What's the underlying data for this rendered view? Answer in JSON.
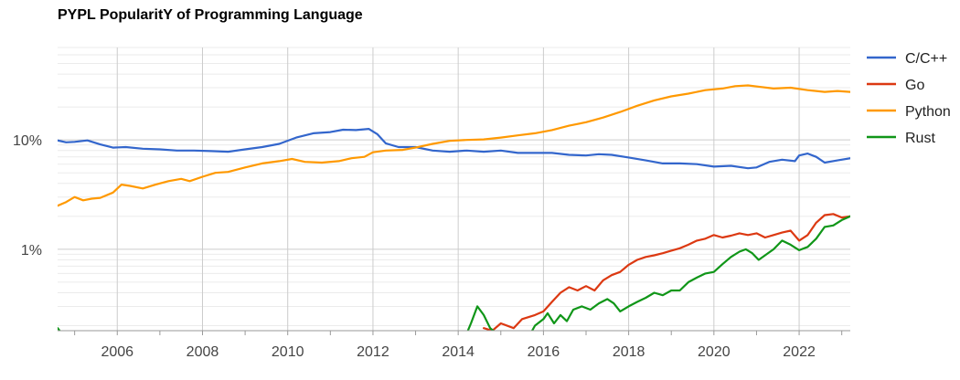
{
  "chart_data": {
    "type": "line",
    "title": "PYPL PopularitY of Programming Language",
    "xlabel": "",
    "ylabel": "",
    "y_scale": "log",
    "ylim": [
      0.18,
      70
    ],
    "xlim": [
      2004.6,
      2023.2
    ],
    "x_ticks": [
      2006,
      2008,
      2010,
      2012,
      2014,
      2016,
      2018,
      2020,
      2022
    ],
    "x_tick_labels": [
      "2006",
      "2008",
      "2010",
      "2012",
      "2014",
      "2016",
      "2018",
      "2020",
      "2022"
    ],
    "y_ticks": [
      1,
      10
    ],
    "y_tick_labels": [
      "1%",
      "10%"
    ],
    "grid": true,
    "legend_position": "right",
    "series": [
      {
        "name": "C/C++",
        "color": "#3366cc",
        "points": [
          [
            2004.6,
            9.9
          ],
          [
            2004.8,
            9.5
          ],
          [
            2005.0,
            9.6
          ],
          [
            2005.3,
            9.9
          ],
          [
            2005.6,
            9.1
          ],
          [
            2005.9,
            8.5
          ],
          [
            2006.2,
            8.6
          ],
          [
            2006.6,
            8.3
          ],
          [
            2007.0,
            8.2
          ],
          [
            2007.4,
            8.0
          ],
          [
            2007.8,
            8.0
          ],
          [
            2008.2,
            7.9
          ],
          [
            2008.6,
            7.8
          ],
          [
            2009.0,
            8.2
          ],
          [
            2009.4,
            8.6
          ],
          [
            2009.8,
            9.2
          ],
          [
            2010.2,
            10.5
          ],
          [
            2010.6,
            11.5
          ],
          [
            2011.0,
            11.8
          ],
          [
            2011.3,
            12.4
          ],
          [
            2011.6,
            12.3
          ],
          [
            2011.9,
            12.6
          ],
          [
            2012.1,
            11.3
          ],
          [
            2012.3,
            9.3
          ],
          [
            2012.6,
            8.6
          ],
          [
            2013.0,
            8.6
          ],
          [
            2013.4,
            8.0
          ],
          [
            2013.8,
            7.8
          ],
          [
            2014.2,
            8.0
          ],
          [
            2014.6,
            7.8
          ],
          [
            2015.0,
            8.0
          ],
          [
            2015.4,
            7.6
          ],
          [
            2015.8,
            7.6
          ],
          [
            2016.2,
            7.6
          ],
          [
            2016.6,
            7.3
          ],
          [
            2017.0,
            7.2
          ],
          [
            2017.3,
            7.4
          ],
          [
            2017.6,
            7.3
          ],
          [
            2018.0,
            6.9
          ],
          [
            2018.4,
            6.5
          ],
          [
            2018.8,
            6.1
          ],
          [
            2019.2,
            6.1
          ],
          [
            2019.6,
            6.0
          ],
          [
            2020.0,
            5.7
          ],
          [
            2020.4,
            5.8
          ],
          [
            2020.8,
            5.5
          ],
          [
            2021.0,
            5.6
          ],
          [
            2021.3,
            6.3
          ],
          [
            2021.6,
            6.6
          ],
          [
            2021.9,
            6.4
          ],
          [
            2022.0,
            7.2
          ],
          [
            2022.2,
            7.5
          ],
          [
            2022.4,
            7.0
          ],
          [
            2022.6,
            6.2
          ],
          [
            2022.9,
            6.5
          ],
          [
            2023.2,
            6.8
          ]
        ]
      },
      {
        "name": "Go",
        "color": "#dc3912",
        "points": [
          [
            2014.6,
            0.19
          ],
          [
            2014.8,
            0.18
          ],
          [
            2015.0,
            0.21
          ],
          [
            2015.3,
            0.19
          ],
          [
            2015.5,
            0.23
          ],
          [
            2015.8,
            0.25
          ],
          [
            2016.0,
            0.27
          ],
          [
            2016.2,
            0.33
          ],
          [
            2016.4,
            0.4
          ],
          [
            2016.6,
            0.45
          ],
          [
            2016.8,
            0.42
          ],
          [
            2017.0,
            0.46
          ],
          [
            2017.2,
            0.42
          ],
          [
            2017.4,
            0.52
          ],
          [
            2017.6,
            0.58
          ],
          [
            2017.8,
            0.62
          ],
          [
            2018.0,
            0.72
          ],
          [
            2018.2,
            0.8
          ],
          [
            2018.4,
            0.85
          ],
          [
            2018.6,
            0.88
          ],
          [
            2018.8,
            0.92
          ],
          [
            2019.0,
            0.97
          ],
          [
            2019.2,
            1.02
          ],
          [
            2019.4,
            1.1
          ],
          [
            2019.6,
            1.2
          ],
          [
            2019.8,
            1.25
          ],
          [
            2020.0,
            1.35
          ],
          [
            2020.2,
            1.28
          ],
          [
            2020.4,
            1.33
          ],
          [
            2020.6,
            1.4
          ],
          [
            2020.8,
            1.35
          ],
          [
            2021.0,
            1.4
          ],
          [
            2021.2,
            1.28
          ],
          [
            2021.4,
            1.35
          ],
          [
            2021.6,
            1.42
          ],
          [
            2021.8,
            1.48
          ],
          [
            2022.0,
            1.2
          ],
          [
            2022.2,
            1.35
          ],
          [
            2022.4,
            1.75
          ],
          [
            2022.6,
            2.05
          ],
          [
            2022.8,
            2.1
          ],
          [
            2023.0,
            1.95
          ],
          [
            2023.2,
            2.0
          ]
        ]
      },
      {
        "name": "Python",
        "color": "#ff9900",
        "points": [
          [
            2004.6,
            2.5
          ],
          [
            2004.8,
            2.7
          ],
          [
            2005.0,
            3.0
          ],
          [
            2005.2,
            2.8
          ],
          [
            2005.4,
            2.9
          ],
          [
            2005.6,
            2.95
          ],
          [
            2005.9,
            3.3
          ],
          [
            2006.1,
            3.9
          ],
          [
            2006.3,
            3.8
          ],
          [
            2006.6,
            3.6
          ],
          [
            2006.9,
            3.9
          ],
          [
            2007.2,
            4.2
          ],
          [
            2007.5,
            4.4
          ],
          [
            2007.7,
            4.2
          ],
          [
            2008.0,
            4.6
          ],
          [
            2008.3,
            5.0
          ],
          [
            2008.6,
            5.1
          ],
          [
            2009.0,
            5.6
          ],
          [
            2009.4,
            6.1
          ],
          [
            2009.8,
            6.4
          ],
          [
            2010.1,
            6.7
          ],
          [
            2010.4,
            6.3
          ],
          [
            2010.8,
            6.2
          ],
          [
            2011.2,
            6.4
          ],
          [
            2011.5,
            6.8
          ],
          [
            2011.8,
            7.0
          ],
          [
            2012.0,
            7.7
          ],
          [
            2012.3,
            8.0
          ],
          [
            2012.7,
            8.1
          ],
          [
            2013.0,
            8.5
          ],
          [
            2013.4,
            9.2
          ],
          [
            2013.8,
            9.8
          ],
          [
            2014.2,
            10.0
          ],
          [
            2014.6,
            10.1
          ],
          [
            2015.0,
            10.5
          ],
          [
            2015.4,
            11.0
          ],
          [
            2015.8,
            11.5
          ],
          [
            2016.2,
            12.3
          ],
          [
            2016.6,
            13.5
          ],
          [
            2017.0,
            14.5
          ],
          [
            2017.4,
            16.0
          ],
          [
            2017.8,
            18.0
          ],
          [
            2018.2,
            20.5
          ],
          [
            2018.6,
            23.0
          ],
          [
            2019.0,
            25.0
          ],
          [
            2019.4,
            26.5
          ],
          [
            2019.8,
            28.5
          ],
          [
            2020.2,
            29.5
          ],
          [
            2020.5,
            31.0
          ],
          [
            2020.8,
            31.5
          ],
          [
            2021.1,
            30.5
          ],
          [
            2021.4,
            29.5
          ],
          [
            2021.8,
            30.0
          ],
          [
            2022.2,
            28.5
          ],
          [
            2022.6,
            27.5
          ],
          [
            2022.9,
            28.0
          ],
          [
            2023.2,
            27.5
          ]
        ]
      },
      {
        "name": "Rust",
        "color": "#109618",
        "segments": [
          [
            [
              2004.6,
              0.19
            ],
            [
              2004.7,
              0.17
            ]
          ],
          [
            [
              2014.2,
              0.17
            ],
            [
              2014.3,
              0.21
            ],
            [
              2014.45,
              0.3
            ],
            [
              2014.6,
              0.25
            ],
            [
              2014.75,
              0.19
            ],
            [
              2014.9,
              0.17
            ]
          ],
          [
            [
              2015.7,
              0.17
            ],
            [
              2015.8,
              0.2
            ],
            [
              2016.0,
              0.23
            ],
            [
              2016.1,
              0.26
            ],
            [
              2016.25,
              0.21
            ],
            [
              2016.4,
              0.25
            ],
            [
              2016.55,
              0.22
            ],
            [
              2016.7,
              0.28
            ],
            [
              2016.9,
              0.3
            ],
            [
              2017.1,
              0.28
            ],
            [
              2017.3,
              0.32
            ],
            [
              2017.5,
              0.35
            ],
            [
              2017.65,
              0.32
            ],
            [
              2017.8,
              0.27
            ],
            [
              2018.0,
              0.3
            ],
            [
              2018.2,
              0.33
            ],
            [
              2018.4,
              0.36
            ],
            [
              2018.6,
              0.4
            ],
            [
              2018.8,
              0.38
            ],
            [
              2019.0,
              0.42
            ],
            [
              2019.2,
              0.42
            ],
            [
              2019.4,
              0.5
            ],
            [
              2019.6,
              0.55
            ],
            [
              2019.8,
              0.6
            ],
            [
              2020.0,
              0.62
            ],
            [
              2020.2,
              0.73
            ],
            [
              2020.4,
              0.85
            ],
            [
              2020.6,
              0.95
            ],
            [
              2020.75,
              1.0
            ],
            [
              2020.9,
              0.92
            ],
            [
              2021.05,
              0.8
            ],
            [
              2021.2,
              0.88
            ],
            [
              2021.4,
              1.0
            ],
            [
              2021.6,
              1.2
            ],
            [
              2021.8,
              1.1
            ],
            [
              2022.0,
              0.98
            ],
            [
              2022.2,
              1.05
            ],
            [
              2022.4,
              1.25
            ],
            [
              2022.6,
              1.6
            ],
            [
              2022.8,
              1.65
            ],
            [
              2023.0,
              1.85
            ],
            [
              2023.2,
              2.0
            ]
          ]
        ]
      }
    ]
  }
}
